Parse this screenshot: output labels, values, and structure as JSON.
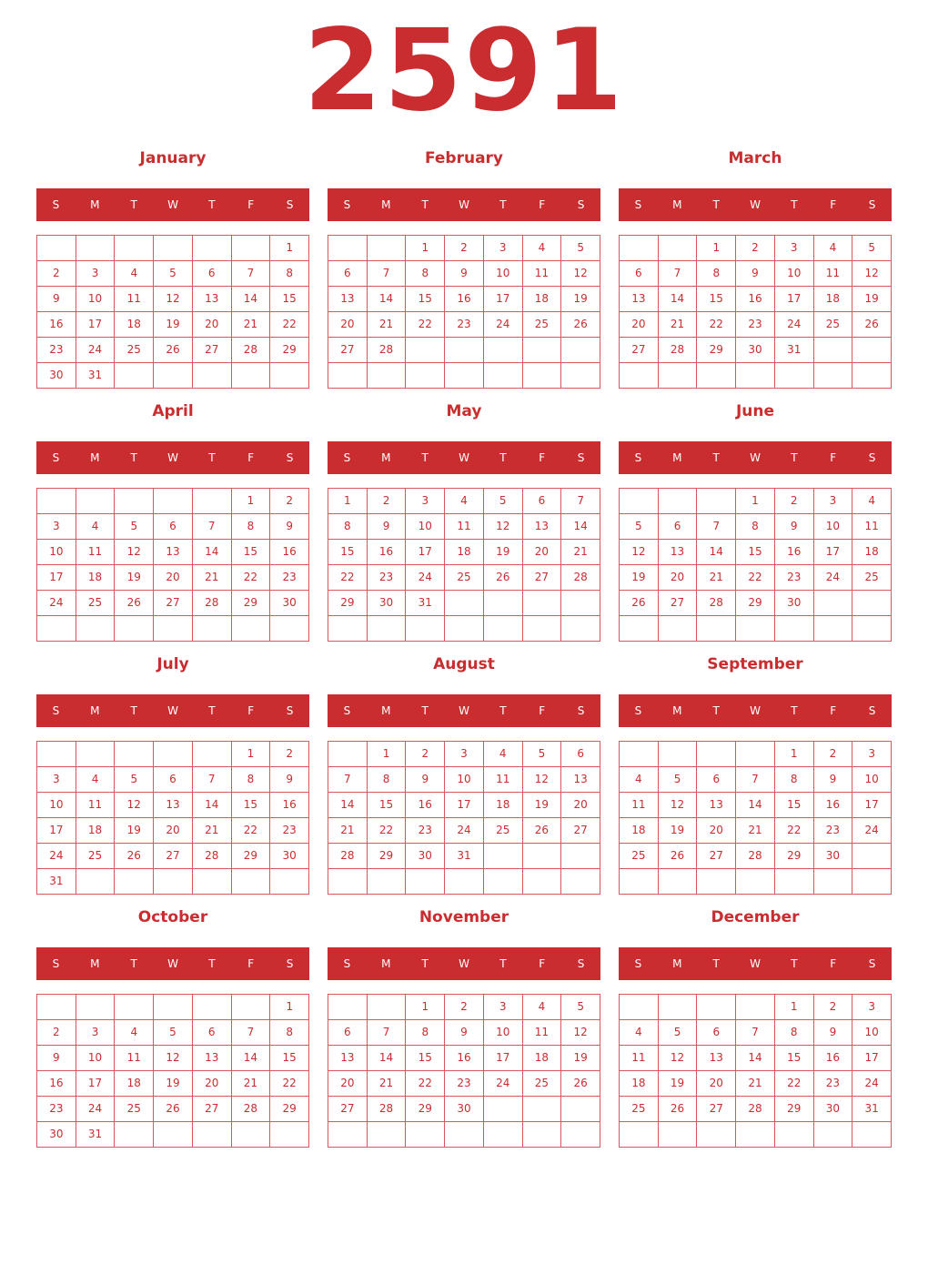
{
  "year": "2591",
  "weekdays": [
    "S",
    "M",
    "T",
    "W",
    "T",
    "F",
    "S"
  ],
  "accent_color": "#c92d2f",
  "months": [
    {
      "name": "January",
      "start_weekday": 6,
      "days": 31
    },
    {
      "name": "February",
      "start_weekday": 2,
      "days": 28
    },
    {
      "name": "March",
      "start_weekday": 2,
      "days": 31
    },
    {
      "name": "April",
      "start_weekday": 5,
      "days": 30
    },
    {
      "name": "May",
      "start_weekday": 0,
      "days": 31
    },
    {
      "name": "June",
      "start_weekday": 3,
      "days": 30
    },
    {
      "name": "July",
      "start_weekday": 5,
      "days": 31
    },
    {
      "name": "August",
      "start_weekday": 1,
      "days": 31
    },
    {
      "name": "September",
      "start_weekday": 4,
      "days": 30
    },
    {
      "name": "October",
      "start_weekday": 6,
      "days": 31
    },
    {
      "name": "November",
      "start_weekday": 2,
      "days": 30
    },
    {
      "name": "December",
      "start_weekday": 4,
      "days": 31
    }
  ]
}
